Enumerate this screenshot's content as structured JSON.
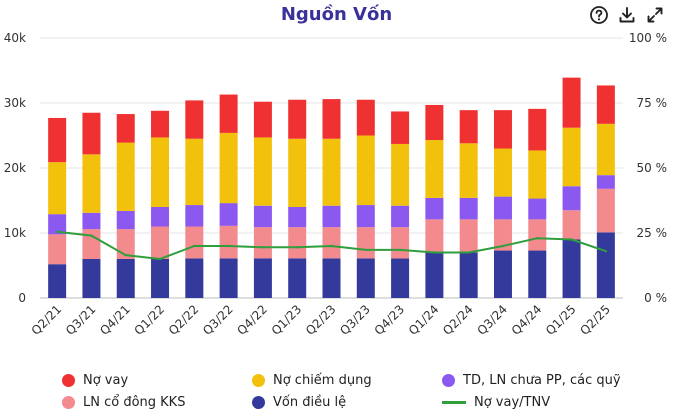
{
  "toolbar": {
    "help_icon": "help-circle-icon",
    "download_icon": "download-icon",
    "expand_icon": "expand-icon"
  },
  "chart_data": {
    "type": "bar",
    "title": "Nguồn Vốn",
    "stacked": true,
    "categories": [
      "Q2/21",
      "Q3/21",
      "Q4/21",
      "Q1/22",
      "Q2/22",
      "Q3/22",
      "Q4/22",
      "Q1/23",
      "Q2/23",
      "Q3/23",
      "Q4/23",
      "Q1/24",
      "Q2/24",
      "Q3/24",
      "Q4/24",
      "Q1/25",
      "Q2/25"
    ],
    "y_ticks": [
      "0",
      "10k",
      "20k",
      "30k",
      "40k"
    ],
    "y2_ticks": [
      "0 %",
      "25 %",
      "50 %",
      "75 %",
      "100 %"
    ],
    "ylim": [
      0,
      40000
    ],
    "y2lim": [
      0,
      100
    ],
    "grid": true,
    "legend_position": "bottom",
    "series": [
      {
        "name": "Vốn điều lệ",
        "color": "#343a9c",
        "values": [
          5200,
          6000,
          6000,
          6000,
          6100,
          6100,
          6100,
          6100,
          6100,
          6100,
          6100,
          7000,
          7000,
          7300,
          7300,
          9000,
          10100
        ]
      },
      {
        "name": "LN cổ đông KKS",
        "color": "#f28a8e",
        "values": [
          4600,
          4600,
          4600,
          5000,
          4900,
          5000,
          4800,
          4800,
          4800,
          4800,
          4800,
          5100,
          5100,
          4800,
          4800,
          4500,
          6700
        ]
      },
      {
        "name": "TD, LN chưa PP, các quỹ",
        "color": "#8b59f0",
        "values": [
          3100,
          2500,
          2800,
          3000,
          3300,
          3500,
          3300,
          3100,
          3300,
          3400,
          3300,
          3300,
          3300,
          3500,
          3200,
          3700,
          2100
        ]
      },
      {
        "name": "Nợ chiếm dụng",
        "color": "#f2c10c",
        "values": [
          8000,
          9000,
          10500,
          10700,
          10200,
          10800,
          10500,
          10500,
          10300,
          10700,
          9500,
          8900,
          8400,
          7400,
          7400,
          9000,
          7900
        ]
      },
      {
        "name": "Nợ vay",
        "color": "#ef3131",
        "values": [
          6800,
          6400,
          4400,
          4100,
          5900,
          5900,
          5500,
          6000,
          6100,
          5500,
          5000,
          5400,
          5100,
          5900,
          6400,
          7700,
          5900
        ]
      }
    ],
    "line_series": {
      "name": "Nợ vay/TNV",
      "color": "#2f9e3c",
      "axis": "right",
      "values": [
        25.5,
        24,
        16.5,
        15,
        20,
        20,
        19.5,
        19.5,
        20,
        18.5,
        18.5,
        17.5,
        17.5,
        20,
        23,
        22.5,
        18
      ]
    }
  }
}
